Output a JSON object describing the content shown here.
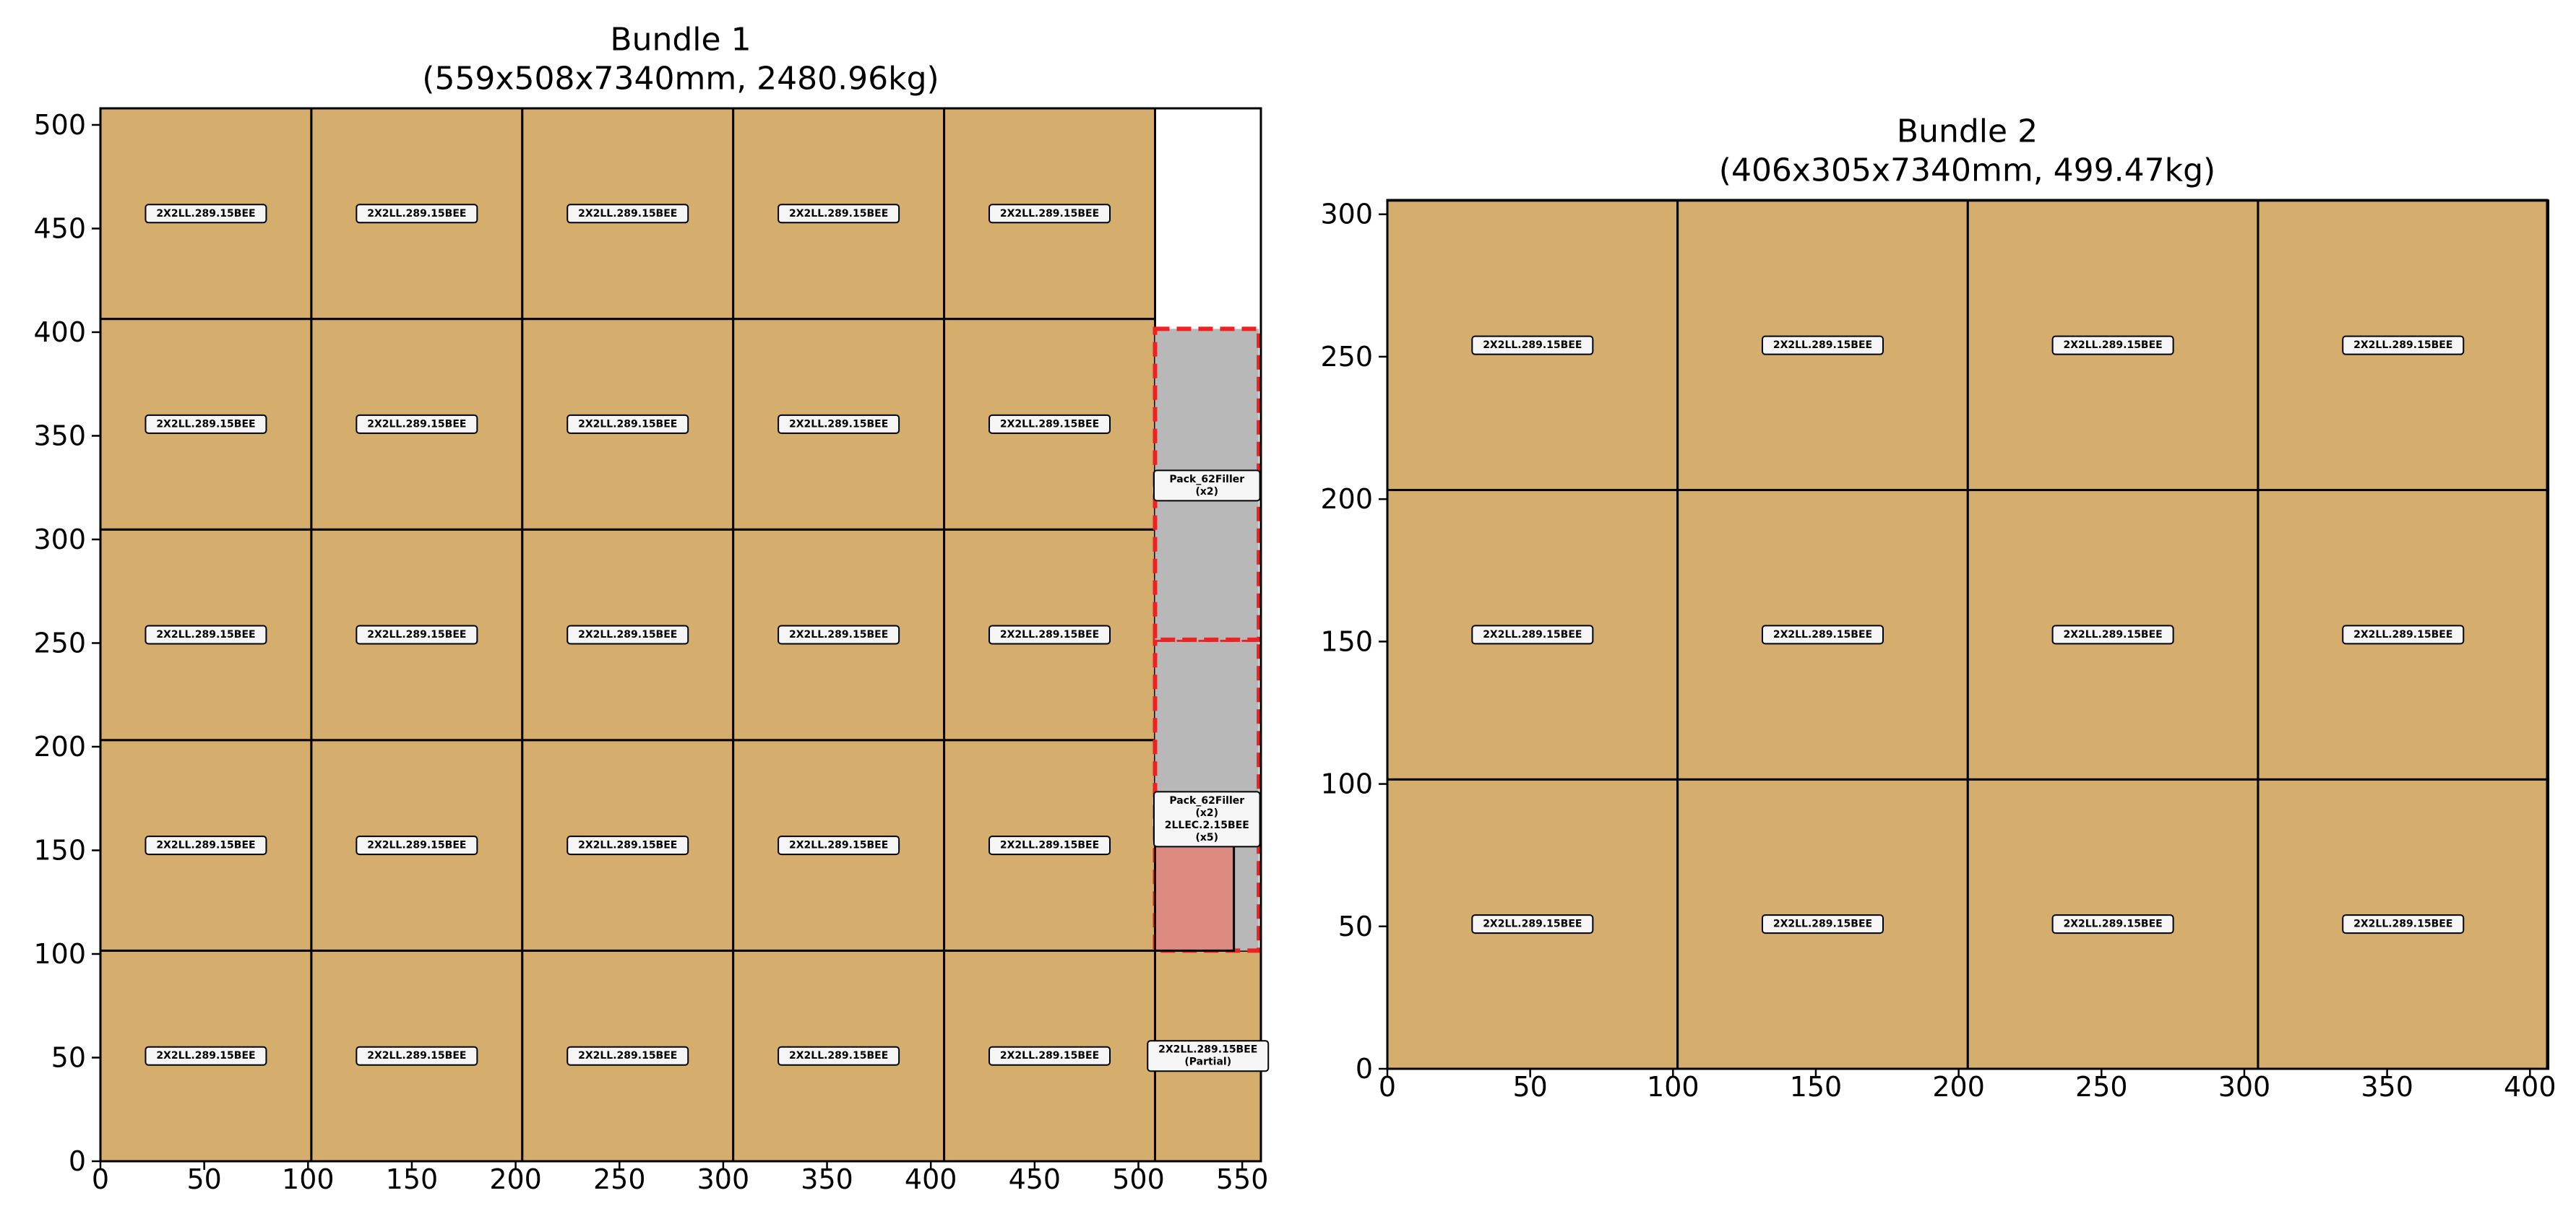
{
  "colors": {
    "board": "#D5AE6E",
    "filler": "#B8B8B8",
    "filler_outline": "#EE2222",
    "edge_piece": "#DD8A80",
    "grid_line": "#000000",
    "label_bg": "#F5F5F5"
  },
  "chart_data": [
    {
      "type": "layout",
      "title": "Bundle 1\n(559x508x7340mm, 2480.96kg)",
      "xlim": [
        0,
        559
      ],
      "ylim": [
        0,
        508
      ],
      "xticks": [
        0,
        50,
        100,
        150,
        200,
        250,
        300,
        350,
        400,
        450,
        500,
        550
      ],
      "yticks": [
        0,
        50,
        100,
        150,
        200,
        250,
        300,
        350,
        400,
        450,
        500
      ],
      "pieces": [
        {
          "x": 0,
          "y": 0,
          "w": 101.6,
          "h": 101.6,
          "label": "2X2LL.289.15BEE"
        },
        {
          "x": 101.6,
          "y": 0,
          "w": 101.6,
          "h": 101.6,
          "label": "2X2LL.289.15BEE"
        },
        {
          "x": 203.2,
          "y": 0,
          "w": 101.6,
          "h": 101.6,
          "label": "2X2LL.289.15BEE"
        },
        {
          "x": 304.8,
          "y": 0,
          "w": 101.6,
          "h": 101.6,
          "label": "2X2LL.289.15BEE"
        },
        {
          "x": 406.4,
          "y": 0,
          "w": 101.6,
          "h": 101.6,
          "label": "2X2LL.289.15BEE"
        },
        {
          "x": 0,
          "y": 101.6,
          "w": 101.6,
          "h": 101.6,
          "label": "2X2LL.289.15BEE"
        },
        {
          "x": 101.6,
          "y": 101.6,
          "w": 101.6,
          "h": 101.6,
          "label": "2X2LL.289.15BEE"
        },
        {
          "x": 203.2,
          "y": 101.6,
          "w": 101.6,
          "h": 101.6,
          "label": "2X2LL.289.15BEE"
        },
        {
          "x": 304.8,
          "y": 101.6,
          "w": 101.6,
          "h": 101.6,
          "label": "2X2LL.289.15BEE"
        },
        {
          "x": 406.4,
          "y": 101.6,
          "w": 101.6,
          "h": 101.6,
          "label": "2X2LL.289.15BEE"
        },
        {
          "x": 0,
          "y": 203.2,
          "w": 101.6,
          "h": 101.6,
          "label": "2X2LL.289.15BEE"
        },
        {
          "x": 101.6,
          "y": 203.2,
          "w": 101.6,
          "h": 101.6,
          "label": "2X2LL.289.15BEE"
        },
        {
          "x": 203.2,
          "y": 203.2,
          "w": 101.6,
          "h": 101.6,
          "label": "2X2LL.289.15BEE"
        },
        {
          "x": 304.8,
          "y": 203.2,
          "w": 101.6,
          "h": 101.6,
          "label": "2X2LL.289.15BEE"
        },
        {
          "x": 406.4,
          "y": 203.2,
          "w": 101.6,
          "h": 101.6,
          "label": "2X2LL.289.15BEE"
        },
        {
          "x": 0,
          "y": 304.8,
          "w": 101.6,
          "h": 101.6,
          "label": "2X2LL.289.15BEE"
        },
        {
          "x": 101.6,
          "y": 304.8,
          "w": 101.6,
          "h": 101.6,
          "label": "2X2LL.289.15BEE"
        },
        {
          "x": 203.2,
          "y": 304.8,
          "w": 101.6,
          "h": 101.6,
          "label": "2X2LL.289.15BEE"
        },
        {
          "x": 304.8,
          "y": 304.8,
          "w": 101.6,
          "h": 101.6,
          "label": "2X2LL.289.15BEE"
        },
        {
          "x": 406.4,
          "y": 304.8,
          "w": 101.6,
          "h": 101.6,
          "label": "2X2LL.289.15BEE"
        },
        {
          "x": 0,
          "y": 406.4,
          "w": 101.6,
          "h": 101.6,
          "label": "2X2LL.289.15BEE"
        },
        {
          "x": 101.6,
          "y": 406.4,
          "w": 101.6,
          "h": 101.6,
          "label": "2X2LL.289.15BEE"
        },
        {
          "x": 203.2,
          "y": 406.4,
          "w": 101.6,
          "h": 101.6,
          "label": "2X2LL.289.15BEE"
        },
        {
          "x": 304.8,
          "y": 406.4,
          "w": 101.6,
          "h": 101.6,
          "label": "2X2LL.289.15BEE"
        },
        {
          "x": 406.4,
          "y": 406.4,
          "w": 101.6,
          "h": 101.6,
          "label": "2X2LL.289.15BEE"
        },
        {
          "x": 508,
          "y": 0,
          "w": 51,
          "h": 101.6,
          "label": "2X2LL.289.15BEE\n(Partial)"
        }
      ],
      "fillers": [
        {
          "x": 508,
          "y": 101.6,
          "w": 50,
          "h": 150,
          "label": "Pack_62Filler\n(x2)\n2LLEC.2.15BEE\n(x5)",
          "label_y": 165
        },
        {
          "x": 508,
          "y": 251.6,
          "w": 50,
          "h": 150,
          "label": "Pack_62Filler\n(x2)",
          "label_y": 326
        }
      ],
      "edge_pieces": [
        {
          "x": 508,
          "y": 101.6,
          "w": 38,
          "h": 51
        }
      ]
    },
    {
      "type": "layout",
      "title": "Bundle 2\n(406x305x7340mm, 499.47kg)",
      "xlim": [
        0,
        406
      ],
      "ylim": [
        0,
        305
      ],
      "xticks": [
        0,
        50,
        100,
        150,
        200,
        250,
        300,
        350,
        400
      ],
      "yticks": [
        0,
        50,
        100,
        150,
        200,
        250,
        300
      ],
      "pieces": [
        {
          "x": 0,
          "y": 0,
          "w": 101.6,
          "h": 101.6,
          "label": "2X2LL.289.15BEE"
        },
        {
          "x": 101.6,
          "y": 0,
          "w": 101.6,
          "h": 101.6,
          "label": "2X2LL.289.15BEE"
        },
        {
          "x": 203.2,
          "y": 0,
          "w": 101.6,
          "h": 101.6,
          "label": "2X2LL.289.15BEE"
        },
        {
          "x": 304.8,
          "y": 0,
          "w": 101.6,
          "h": 101.6,
          "label": "2X2LL.289.15BEE"
        },
        {
          "x": 0,
          "y": 101.6,
          "w": 101.6,
          "h": 101.6,
          "label": "2X2LL.289.15BEE"
        },
        {
          "x": 101.6,
          "y": 101.6,
          "w": 101.6,
          "h": 101.6,
          "label": "2X2LL.289.15BEE"
        },
        {
          "x": 203.2,
          "y": 101.6,
          "w": 101.6,
          "h": 101.6,
          "label": "2X2LL.289.15BEE"
        },
        {
          "x": 304.8,
          "y": 101.6,
          "w": 101.6,
          "h": 101.6,
          "label": "2X2LL.289.15BEE"
        },
        {
          "x": 0,
          "y": 203.2,
          "w": 101.6,
          "h": 101.6,
          "label": "2X2LL.289.15BEE"
        },
        {
          "x": 101.6,
          "y": 203.2,
          "w": 101.6,
          "h": 101.6,
          "label": "2X2LL.289.15BEE"
        },
        {
          "x": 203.2,
          "y": 203.2,
          "w": 101.6,
          "h": 101.6,
          "label": "2X2LL.289.15BEE"
        },
        {
          "x": 304.8,
          "y": 203.2,
          "w": 101.6,
          "h": 101.6,
          "label": "2X2LL.289.15BEE"
        }
      ],
      "fillers": [],
      "edge_pieces": []
    }
  ]
}
